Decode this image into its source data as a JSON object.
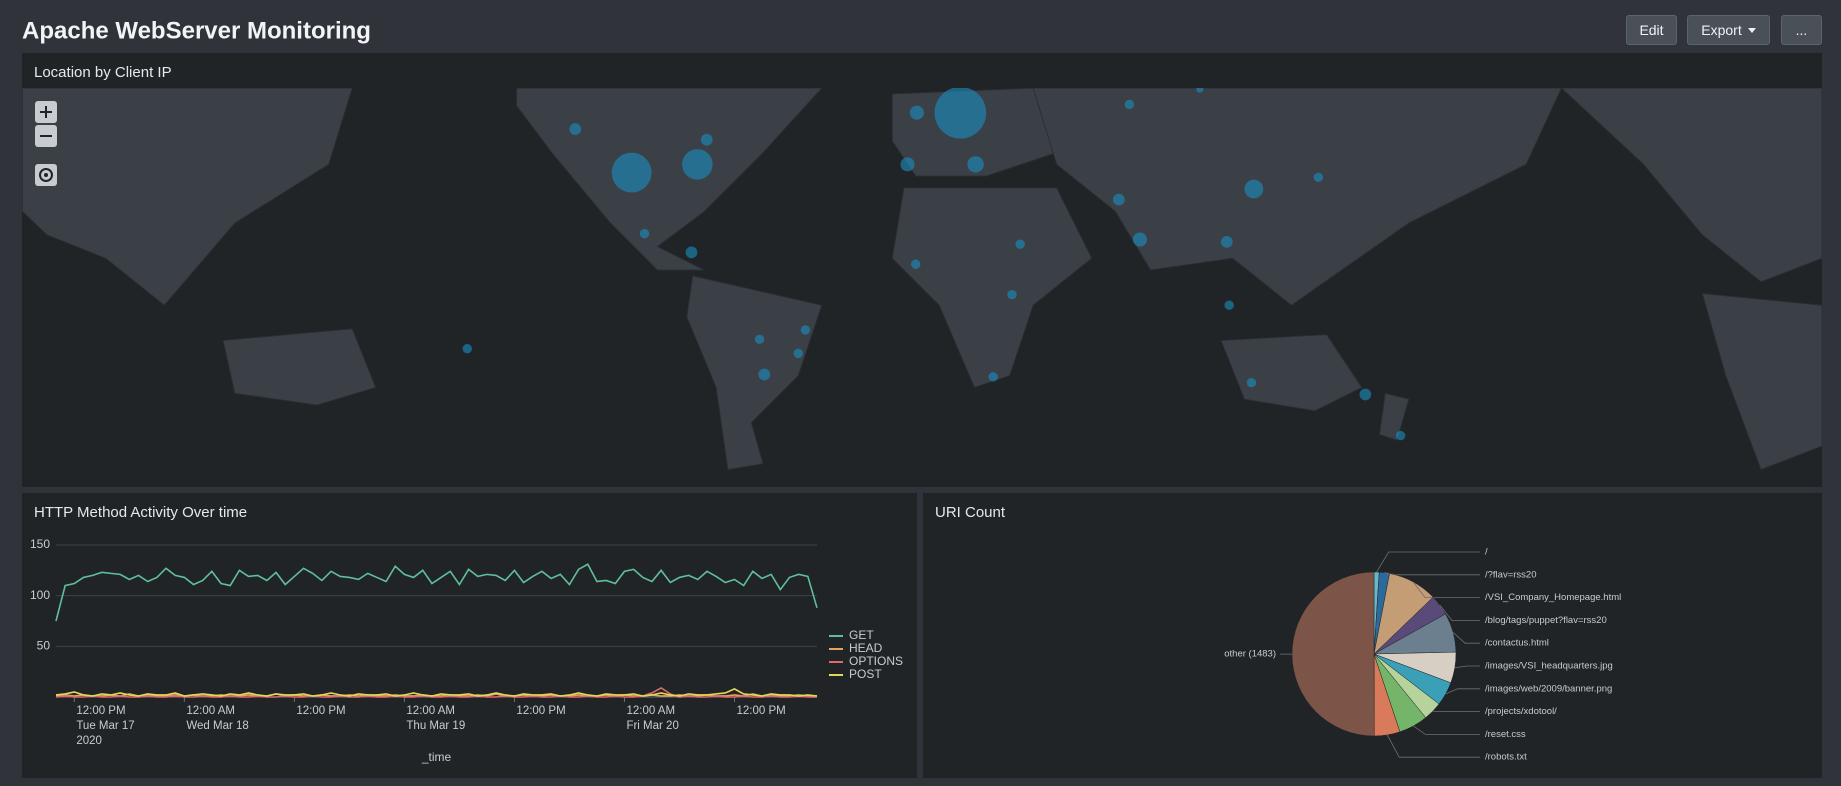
{
  "header": {
    "title": "Apache WebServer Monitoring",
    "buttons": [
      "Edit",
      "Export",
      "..."
    ]
  },
  "map_panel": {
    "title": "Location by Client IP"
  },
  "chart_data": [
    {
      "type": "line",
      "title": "HTTP Method Activity Over time",
      "x_label": "_time",
      "x": [
        0,
        1,
        2,
        3,
        4,
        5,
        6,
        7,
        8,
        9,
        10,
        11,
        12,
        13,
        14,
        15,
        16,
        17,
        18,
        19,
        20,
        21,
        22,
        23,
        24,
        25,
        26,
        27,
        28,
        29,
        30,
        31,
        32,
        33,
        34,
        35,
        36,
        37,
        38,
        39,
        40,
        41,
        42,
        43,
        44,
        45,
        46,
        47,
        48,
        49,
        50,
        51,
        52,
        53,
        54,
        55,
        56,
        57,
        58,
        59,
        60,
        61,
        62,
        63,
        64,
        65,
        66,
        67,
        68,
        69,
        70,
        71,
        72,
        73,
        74,
        75,
        76,
        77,
        78,
        79,
        80,
        81,
        82,
        83
      ],
      "xlim": [
        0,
        83
      ],
      "xticks": [
        {
          "value": 2,
          "label": "12:00 PM\nTue Mar 17\n2020"
        },
        {
          "value": 14,
          "label": "12:00 AM\nWed Mar 18"
        },
        {
          "value": 26,
          "label": "12:00 PM"
        },
        {
          "value": 38,
          "label": "12:00 AM\nThu Mar 19"
        },
        {
          "value": 50,
          "label": "12:00 PM"
        },
        {
          "value": 62,
          "label": "12:00 AM\nFri Mar 20"
        },
        {
          "value": 74,
          "label": "12:00 PM"
        }
      ],
      "ylim": [
        0,
        150
      ],
      "yticks": [
        50,
        100,
        150
      ],
      "grid": true,
      "legend": "right",
      "series": [
        {
          "name": "GET",
          "color": "#5fbf9c",
          "values": [
            75,
            110,
            112,
            118,
            120,
            123,
            122,
            121,
            116,
            120,
            114,
            118,
            127,
            120,
            118,
            111,
            115,
            124,
            112,
            110,
            125,
            119,
            120,
            115,
            123,
            111,
            119,
            127,
            122,
            115,
            124,
            119,
            118,
            116,
            122,
            118,
            114,
            129,
            121,
            118,
            125,
            112,
            118,
            124,
            111,
            126,
            119,
            121,
            120,
            115,
            125,
            113,
            119,
            124,
            117,
            121,
            111,
            126,
            131,
            114,
            115,
            112,
            124,
            126,
            118,
            114,
            125,
            113,
            118,
            120,
            116,
            124,
            119,
            113,
            116,
            110,
            124,
            117,
            121,
            106,
            118,
            121,
            119,
            88
          ]
        },
        {
          "name": "HEAD",
          "color": "#e8a35a",
          "values": [
            1,
            2,
            1,
            2,
            1,
            1,
            2,
            1,
            3,
            1,
            2,
            1,
            1,
            2,
            1,
            2,
            1,
            1,
            2,
            1,
            1,
            2,
            1,
            1,
            3,
            1,
            2,
            1,
            1,
            2,
            1,
            1,
            2,
            1,
            2,
            1,
            1,
            2,
            1,
            1,
            2,
            1,
            1,
            2,
            1,
            1,
            2,
            1,
            3,
            1,
            1,
            2,
            1,
            1,
            2,
            1,
            1,
            2,
            1,
            1,
            2,
            1,
            2,
            1,
            1,
            2,
            1,
            1,
            2,
            1,
            1,
            2,
            1,
            1,
            2,
            1,
            3,
            1,
            2,
            1,
            1,
            2,
            1,
            1
          ]
        },
        {
          "name": "OPTIONS",
          "color": "#e06a6a",
          "values": [
            0,
            1,
            0,
            0,
            1,
            0,
            0,
            1,
            0,
            0,
            1,
            0,
            0,
            1,
            0,
            0,
            1,
            0,
            0,
            1,
            0,
            0,
            1,
            0,
            0,
            1,
            0,
            0,
            1,
            0,
            0,
            1,
            0,
            0,
            1,
            0,
            0,
            1,
            0,
            0,
            1,
            0,
            0,
            1,
            0,
            0,
            1,
            0,
            0,
            1,
            0,
            0,
            1,
            0,
            0,
            1,
            0,
            0,
            1,
            0,
            0,
            1,
            0,
            0,
            1,
            4,
            9,
            3,
            0,
            1,
            0,
            0,
            1,
            0,
            0,
            1,
            0,
            0,
            1,
            0,
            0,
            1,
            0,
            0
          ]
        },
        {
          "name": "POST",
          "color": "#e0d85a",
          "values": [
            2,
            3,
            5,
            2,
            1,
            3,
            2,
            4,
            2,
            1,
            3,
            2,
            2,
            4,
            1,
            2,
            3,
            2,
            1,
            3,
            2,
            4,
            2,
            1,
            3,
            2,
            2,
            3,
            1,
            2,
            4,
            2,
            1,
            3,
            2,
            2,
            3,
            1,
            2,
            4,
            2,
            1,
            3,
            2,
            2,
            3,
            1,
            2,
            4,
            2,
            1,
            3,
            2,
            2,
            3,
            1,
            2,
            4,
            2,
            1,
            3,
            2,
            2,
            3,
            1,
            2,
            4,
            2,
            1,
            3,
            2,
            2,
            3,
            4,
            8,
            3,
            2,
            1,
            3,
            2,
            2,
            1,
            2,
            1
          ]
        }
      ]
    },
    {
      "type": "pie",
      "title": "URI Count",
      "categories": [
        "/",
        "/?flav=rss20",
        "/VSI_Company_Homepage.html",
        "/blog/tags/puppet?flav=rss20",
        "/contactus.html",
        "/images/VSI_headquarters.jpg",
        "/images/web/2009/banner.png",
        "/projects/xdotool/",
        "/reset.css",
        "/robots.txt",
        "other (1483)"
      ],
      "values": [
        30,
        60,
        290,
        120,
        230,
        180,
        140,
        110,
        170,
        150,
        1483
      ],
      "colors": [
        "#6bb7c8",
        "#2d6a9c",
        "#c59d74",
        "#5a4a7a",
        "#6b7f8e",
        "#d8cfc4",
        "#3aa0b8",
        "#b5d39a",
        "#75b56a",
        "#d97a5a",
        "#7c5448"
      ]
    }
  ]
}
